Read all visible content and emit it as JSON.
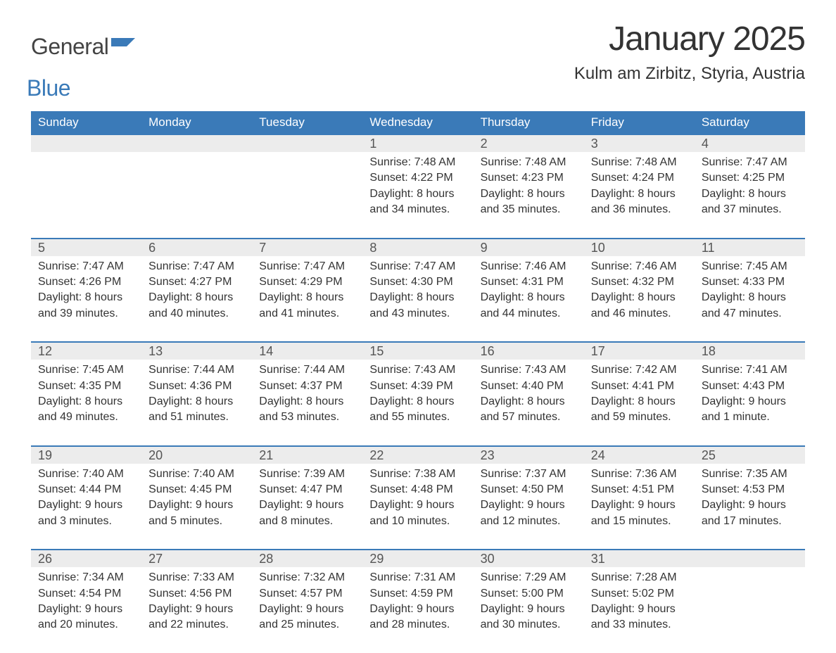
{
  "brand": {
    "part1": "General",
    "part2": "Blue",
    "icon_color": "#3a7ab8"
  },
  "title": {
    "month": "January 2025",
    "location": "Kulm am Zirbitz, Styria, Austria"
  },
  "colors": {
    "header_bg": "#3a7ab8",
    "header_text": "#ffffff",
    "daynum_bg": "#ececec",
    "daynum_text": "#555555",
    "body_text": "#333333",
    "row_border": "#3a7ab8",
    "page_bg": "#ffffff"
  },
  "typography": {
    "month_title_fontsize": 48,
    "location_fontsize": 24,
    "dayhead_fontsize": 17,
    "daynum_fontsize": 18,
    "content_fontsize": 16
  },
  "day_headers": [
    "Sunday",
    "Monday",
    "Tuesday",
    "Wednesday",
    "Thursday",
    "Friday",
    "Saturday"
  ],
  "weeks": [
    [
      {
        "num": "",
        "sunrise": "",
        "sunset": "",
        "daylight": ""
      },
      {
        "num": "",
        "sunrise": "",
        "sunset": "",
        "daylight": ""
      },
      {
        "num": "",
        "sunrise": "",
        "sunset": "",
        "daylight": ""
      },
      {
        "num": "1",
        "sunrise": "Sunrise: 7:48 AM",
        "sunset": "Sunset: 4:22 PM",
        "daylight": "Daylight: 8 hours and 34 minutes."
      },
      {
        "num": "2",
        "sunrise": "Sunrise: 7:48 AM",
        "sunset": "Sunset: 4:23 PM",
        "daylight": "Daylight: 8 hours and 35 minutes."
      },
      {
        "num": "3",
        "sunrise": "Sunrise: 7:48 AM",
        "sunset": "Sunset: 4:24 PM",
        "daylight": "Daylight: 8 hours and 36 minutes."
      },
      {
        "num": "4",
        "sunrise": "Sunrise: 7:47 AM",
        "sunset": "Sunset: 4:25 PM",
        "daylight": "Daylight: 8 hours and 37 minutes."
      }
    ],
    [
      {
        "num": "5",
        "sunrise": "Sunrise: 7:47 AM",
        "sunset": "Sunset: 4:26 PM",
        "daylight": "Daylight: 8 hours and 39 minutes."
      },
      {
        "num": "6",
        "sunrise": "Sunrise: 7:47 AM",
        "sunset": "Sunset: 4:27 PM",
        "daylight": "Daylight: 8 hours and 40 minutes."
      },
      {
        "num": "7",
        "sunrise": "Sunrise: 7:47 AM",
        "sunset": "Sunset: 4:29 PM",
        "daylight": "Daylight: 8 hours and 41 minutes."
      },
      {
        "num": "8",
        "sunrise": "Sunrise: 7:47 AM",
        "sunset": "Sunset: 4:30 PM",
        "daylight": "Daylight: 8 hours and 43 minutes."
      },
      {
        "num": "9",
        "sunrise": "Sunrise: 7:46 AM",
        "sunset": "Sunset: 4:31 PM",
        "daylight": "Daylight: 8 hours and 44 minutes."
      },
      {
        "num": "10",
        "sunrise": "Sunrise: 7:46 AM",
        "sunset": "Sunset: 4:32 PM",
        "daylight": "Daylight: 8 hours and 46 minutes."
      },
      {
        "num": "11",
        "sunrise": "Sunrise: 7:45 AM",
        "sunset": "Sunset: 4:33 PM",
        "daylight": "Daylight: 8 hours and 47 minutes."
      }
    ],
    [
      {
        "num": "12",
        "sunrise": "Sunrise: 7:45 AM",
        "sunset": "Sunset: 4:35 PM",
        "daylight": "Daylight: 8 hours and 49 minutes."
      },
      {
        "num": "13",
        "sunrise": "Sunrise: 7:44 AM",
        "sunset": "Sunset: 4:36 PM",
        "daylight": "Daylight: 8 hours and 51 minutes."
      },
      {
        "num": "14",
        "sunrise": "Sunrise: 7:44 AM",
        "sunset": "Sunset: 4:37 PM",
        "daylight": "Daylight: 8 hours and 53 minutes."
      },
      {
        "num": "15",
        "sunrise": "Sunrise: 7:43 AM",
        "sunset": "Sunset: 4:39 PM",
        "daylight": "Daylight: 8 hours and 55 minutes."
      },
      {
        "num": "16",
        "sunrise": "Sunrise: 7:43 AM",
        "sunset": "Sunset: 4:40 PM",
        "daylight": "Daylight: 8 hours and 57 minutes."
      },
      {
        "num": "17",
        "sunrise": "Sunrise: 7:42 AM",
        "sunset": "Sunset: 4:41 PM",
        "daylight": "Daylight: 8 hours and 59 minutes."
      },
      {
        "num": "18",
        "sunrise": "Sunrise: 7:41 AM",
        "sunset": "Sunset: 4:43 PM",
        "daylight": "Daylight: 9 hours and 1 minute."
      }
    ],
    [
      {
        "num": "19",
        "sunrise": "Sunrise: 7:40 AM",
        "sunset": "Sunset: 4:44 PM",
        "daylight": "Daylight: 9 hours and 3 minutes."
      },
      {
        "num": "20",
        "sunrise": "Sunrise: 7:40 AM",
        "sunset": "Sunset: 4:45 PM",
        "daylight": "Daylight: 9 hours and 5 minutes."
      },
      {
        "num": "21",
        "sunrise": "Sunrise: 7:39 AM",
        "sunset": "Sunset: 4:47 PM",
        "daylight": "Daylight: 9 hours and 8 minutes."
      },
      {
        "num": "22",
        "sunrise": "Sunrise: 7:38 AM",
        "sunset": "Sunset: 4:48 PM",
        "daylight": "Daylight: 9 hours and 10 minutes."
      },
      {
        "num": "23",
        "sunrise": "Sunrise: 7:37 AM",
        "sunset": "Sunset: 4:50 PM",
        "daylight": "Daylight: 9 hours and 12 minutes."
      },
      {
        "num": "24",
        "sunrise": "Sunrise: 7:36 AM",
        "sunset": "Sunset: 4:51 PM",
        "daylight": "Daylight: 9 hours and 15 minutes."
      },
      {
        "num": "25",
        "sunrise": "Sunrise: 7:35 AM",
        "sunset": "Sunset: 4:53 PM",
        "daylight": "Daylight: 9 hours and 17 minutes."
      }
    ],
    [
      {
        "num": "26",
        "sunrise": "Sunrise: 7:34 AM",
        "sunset": "Sunset: 4:54 PM",
        "daylight": "Daylight: 9 hours and 20 minutes."
      },
      {
        "num": "27",
        "sunrise": "Sunrise: 7:33 AM",
        "sunset": "Sunset: 4:56 PM",
        "daylight": "Daylight: 9 hours and 22 minutes."
      },
      {
        "num": "28",
        "sunrise": "Sunrise: 7:32 AM",
        "sunset": "Sunset: 4:57 PM",
        "daylight": "Daylight: 9 hours and 25 minutes."
      },
      {
        "num": "29",
        "sunrise": "Sunrise: 7:31 AM",
        "sunset": "Sunset: 4:59 PM",
        "daylight": "Daylight: 9 hours and 28 minutes."
      },
      {
        "num": "30",
        "sunrise": "Sunrise: 7:29 AM",
        "sunset": "Sunset: 5:00 PM",
        "daylight": "Daylight: 9 hours and 30 minutes."
      },
      {
        "num": "31",
        "sunrise": "Sunrise: 7:28 AM",
        "sunset": "Sunset: 5:02 PM",
        "daylight": "Daylight: 9 hours and 33 minutes."
      },
      {
        "num": "",
        "sunrise": "",
        "sunset": "",
        "daylight": ""
      }
    ]
  ]
}
